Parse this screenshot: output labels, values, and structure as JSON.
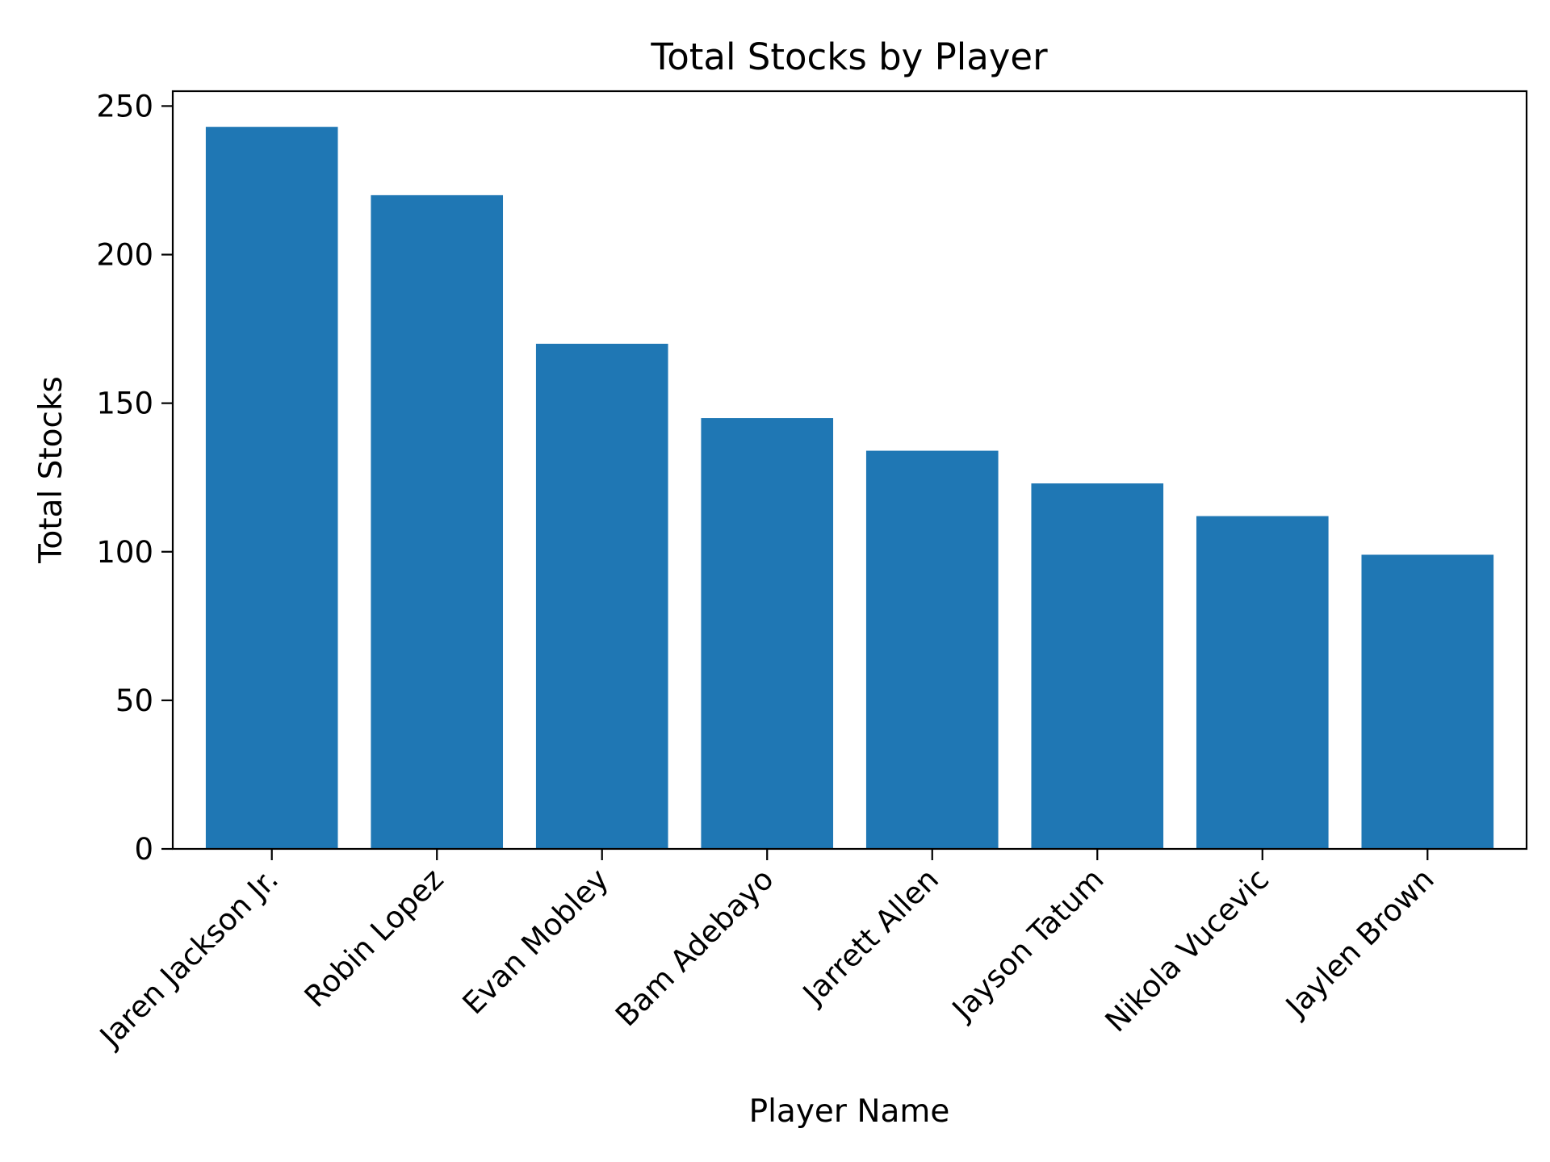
{
  "chart_data": {
    "type": "bar",
    "title": "Total Stocks by Player",
    "xlabel": "Player Name",
    "ylabel": "Total Stocks",
    "categories": [
      "Jaren Jackson Jr.",
      "Robin Lopez",
      "Evan Mobley",
      "Bam Adebayo",
      "Jarrett Allen",
      "Jayson Tatum",
      "Nikola Vucevic",
      "Jaylen Brown"
    ],
    "values": [
      243,
      220,
      170,
      145,
      134,
      123,
      112,
      99
    ],
    "ylim": [
      0,
      255
    ],
    "yticks": [
      0,
      50,
      100,
      150,
      200,
      250
    ],
    "bar_color": "#1f77b4",
    "grid": false,
    "legend": "none"
  }
}
